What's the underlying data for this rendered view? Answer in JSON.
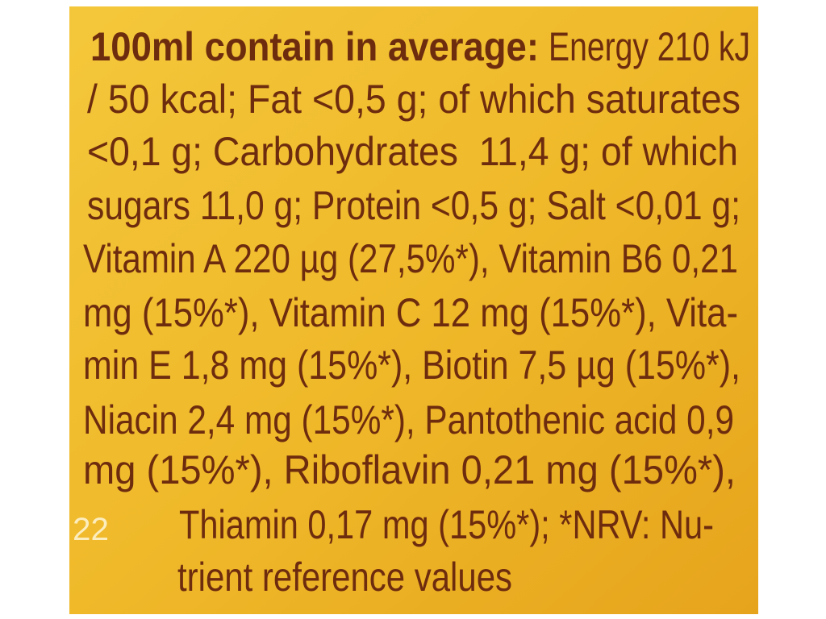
{
  "label": {
    "heading": "100ml contain in average:",
    "lines": [
      "Energy 210 kJ",
      "/ 50 kcal; Fat <0,5 g; of which saturates",
      "<0,1 g; Carbohydrates  11,4 g; of which",
      "sugars 11,0 g; Protein <0,5 g; Salt <0,01 g;",
      "Vitamin A 220 µg (27,5%*), Vitamin B6 0,21",
      "mg (15%*), Vitamin C 12 mg (15%*), Vita-",
      "min E 1,8 mg (15%*), Biotin 7,5 µg (15%*),",
      "Niacin 2,4 mg (15%*), Pantothenic acid 0,9",
      "mg (15%*), Riboflavin 0,21 mg (15%*),",
      "Thiamin 0,17 mg (15%*); *NRV: Nu-",
      "trient reference values"
    ],
    "stamp": "22"
  }
}
